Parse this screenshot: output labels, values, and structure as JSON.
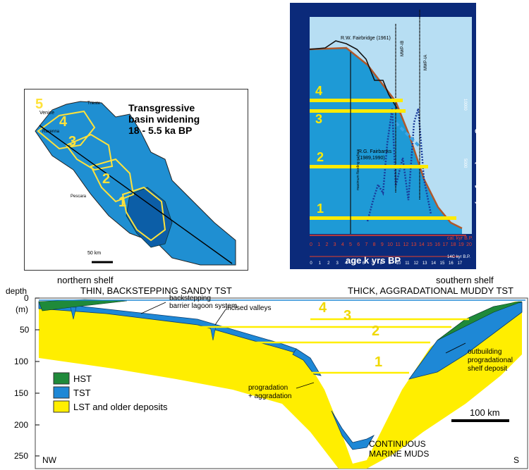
{
  "map": {
    "title_line1": "Transgressive",
    "title_line2": "basin widening",
    "title_line3": "18 - 5.5 ka BP",
    "stage_labels": [
      "5",
      "4",
      "3",
      "2",
      "1"
    ],
    "place_venice": "Venice",
    "place_trieste": "Trieste",
    "place_ravenna": "Ravenna",
    "place_pescara": "Pescara",
    "scale_label": "50 km"
  },
  "chart": {
    "ylabel_left": "depth (m)",
    "ylabel_right": "discharge rate (km3 yr-1)",
    "xlabel": "age k yrs BP",
    "xunit_cal": "cal. kyr B.P.",
    "xunit_14c": "14C kyr B.P.",
    "curve_fairbridge": "R.W. Fairbridge (1961)",
    "curve_fairbanks_1": "R.G. Fairbanks",
    "curve_fairbanks_2": "(1989,1990)",
    "label_mwp1b": "MWP-IB",
    "label_mwp1a": "MWP-IA",
    "label_flooding": "maximum flooding surface",
    "right_tick_10000": "10000",
    "right_tick_5000": "5000",
    "stage_labels": [
      "4",
      "3",
      "2",
      "1"
    ],
    "xticks": [
      "0",
      "1",
      "2",
      "3",
      "4",
      "5",
      "6",
      "7",
      "8",
      "9",
      "10",
      "11",
      "12",
      "13",
      "14",
      "15",
      "16",
      "17",
      "18",
      "19",
      "20"
    ],
    "xticks_14c": [
      "0",
      "1",
      "2",
      "3",
      "4",
      "5",
      "6",
      "7",
      "8",
      "9",
      "10",
      "11",
      "12",
      "13",
      "14",
      "15",
      "16",
      "17"
    ],
    "colors": {
      "background": "#0b2a7a",
      "water": "#1e9ad6",
      "sky": "#b7def3",
      "stage_band": "#ffea00",
      "axis": "#e8402a"
    }
  },
  "section": {
    "header_left": "northern shelf",
    "header_right": "southern shelf",
    "subheader_left": "THIN, BACKSTEPPING SANDY TST",
    "subheader_right": "THICK, AGGRADATIONAL MUDDY TST",
    "depth_label": "depth",
    "depth_unit": "(m)",
    "depth_ticks": [
      "0",
      "50",
      "100",
      "150",
      "200",
      "250"
    ],
    "ann_barrier_1": "backstepping",
    "ann_barrier_2": "barrier lagoon system",
    "ann_incised": "incised valleys",
    "ann_prog_1": "progradation",
    "ann_prog_2": "+ aggradation",
    "ann_outbuild_1": "outbuilding",
    "ann_outbuild_2": "progradational",
    "ann_outbuild_3": "shelf deposit",
    "ann_muds_1": "CONTINUOUS",
    "ann_muds_2": "MARINE MUDS",
    "stage_labels": [
      "4",
      "3",
      "2",
      "1"
    ],
    "scale_label": "100 km",
    "corner_nw": "NW",
    "corner_s": "S",
    "legend": [
      {
        "label": "HST",
        "color": "#1f8a3a"
      },
      {
        "label": "TST",
        "color": "#1e88d6"
      },
      {
        "label": "LST and older deposits",
        "color": "#ffee00"
      }
    ]
  }
}
